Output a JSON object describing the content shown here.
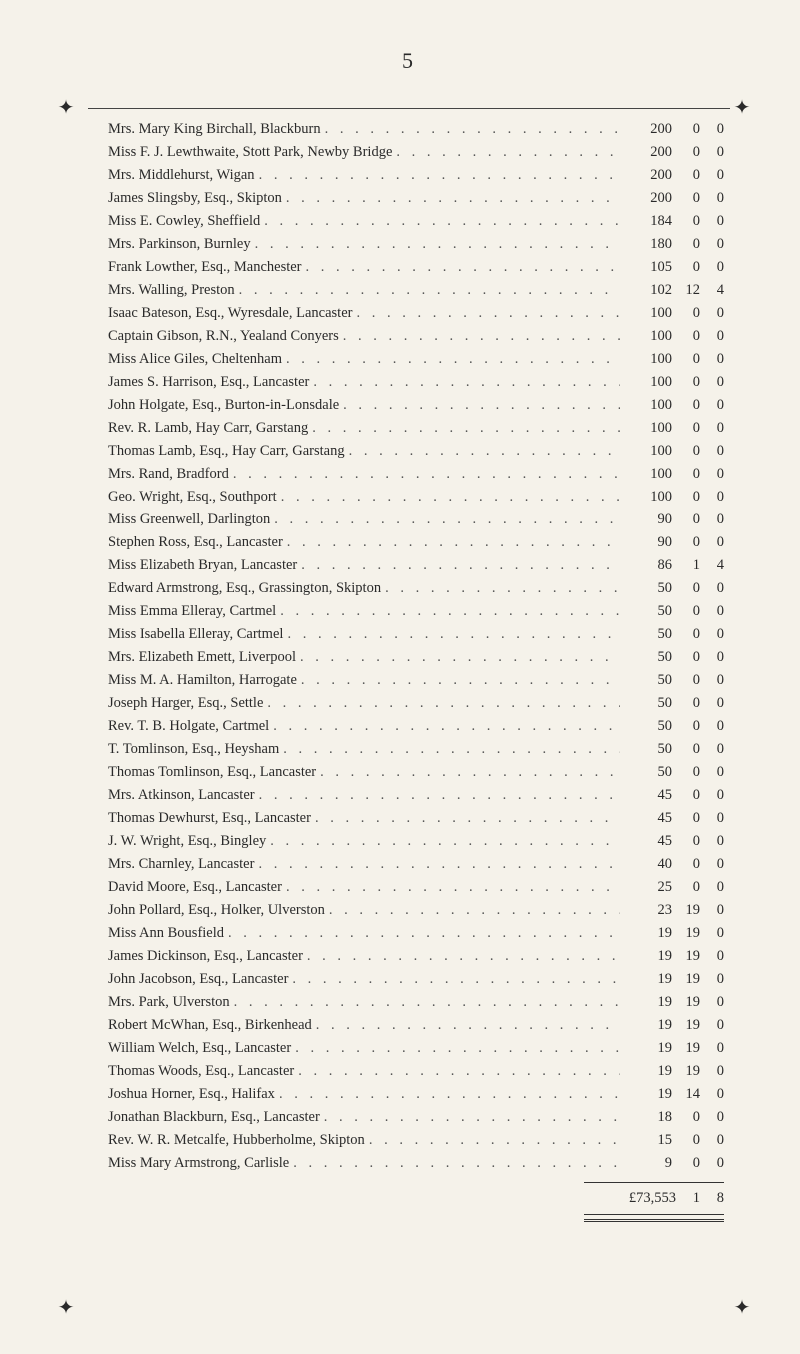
{
  "page_number": "5",
  "ornaments": {
    "top_left": "✦",
    "top_right": "✦",
    "bottom_left": "✦",
    "bottom_right": "✦"
  },
  "entries": [
    {
      "name": "Mrs. Mary King Birchall, Blackburn",
      "p": "200",
      "s": "0",
      "d": "0"
    },
    {
      "name": "Miss F. J. Lewthwaite, Stott Park, Newby Bridge",
      "p": "200",
      "s": "0",
      "d": "0"
    },
    {
      "name": "Mrs. Middlehurst, Wigan",
      "p": "200",
      "s": "0",
      "d": "0"
    },
    {
      "name": "James Slingsby, Esq., Skipton",
      "p": "200",
      "s": "0",
      "d": "0"
    },
    {
      "name": "Miss E. Cowley, Sheffield",
      "p": "184",
      "s": "0",
      "d": "0"
    },
    {
      "name": "Mrs. Parkinson, Burnley",
      "p": "180",
      "s": "0",
      "d": "0"
    },
    {
      "name": "Frank Lowther, Esq., Manchester",
      "p": "105",
      "s": "0",
      "d": "0"
    },
    {
      "name": "Mrs. Walling, Preston",
      "p": "102",
      "s": "12",
      "d": "4"
    },
    {
      "name": "Isaac Bateson, Esq., Wyresdale, Lancaster",
      "p": "100",
      "s": "0",
      "d": "0"
    },
    {
      "name": "Captain Gibson, R.N., Yealand Conyers",
      "p": "100",
      "s": "0",
      "d": "0"
    },
    {
      "name": "Miss Alice Giles, Cheltenham",
      "p": "100",
      "s": "0",
      "d": "0"
    },
    {
      "name": "James S. Harrison, Esq., Lancaster",
      "p": "100",
      "s": "0",
      "d": "0"
    },
    {
      "name": "John Holgate, Esq., Burton-in-Lonsdale",
      "p": "100",
      "s": "0",
      "d": "0"
    },
    {
      "name": "Rev. R. Lamb, Hay Carr, Garstang",
      "p": "100",
      "s": "0",
      "d": "0"
    },
    {
      "name": "Thomas Lamb, Esq., Hay Carr, Garstang",
      "p": "100",
      "s": "0",
      "d": "0"
    },
    {
      "name": "Mrs. Rand, Bradford",
      "p": "100",
      "s": "0",
      "d": "0"
    },
    {
      "name": "Geo. Wright, Esq., Southport",
      "p": "100",
      "s": "0",
      "d": "0"
    },
    {
      "name": "Miss Greenwell, Darlington",
      "p": "90",
      "s": "0",
      "d": "0"
    },
    {
      "name": "Stephen Ross, Esq., Lancaster",
      "p": "90",
      "s": "0",
      "d": "0"
    },
    {
      "name": "Miss Elizabeth Bryan, Lancaster",
      "p": "86",
      "s": "1",
      "d": "4"
    },
    {
      "name": "Edward Armstrong, Esq., Grassington, Skipton",
      "p": "50",
      "s": "0",
      "d": "0"
    },
    {
      "name": "Miss Emma Elleray, Cartmel",
      "p": "50",
      "s": "0",
      "d": "0"
    },
    {
      "name": "Miss Isabella Elleray, Cartmel",
      "p": "50",
      "s": "0",
      "d": "0"
    },
    {
      "name": "Mrs. Elizabeth Emett, Liverpool",
      "p": "50",
      "s": "0",
      "d": "0"
    },
    {
      "name": "Miss M. A. Hamilton, Harrogate",
      "p": "50",
      "s": "0",
      "d": "0"
    },
    {
      "name": "Joseph Harger, Esq., Settle",
      "p": "50",
      "s": "0",
      "d": "0"
    },
    {
      "name": "Rev. T. B. Holgate, Cartmel",
      "p": "50",
      "s": "0",
      "d": "0"
    },
    {
      "name": "T. Tomlinson, Esq., Heysham",
      "p": "50",
      "s": "0",
      "d": "0"
    },
    {
      "name": "Thomas Tomlinson, Esq., Lancaster",
      "p": "50",
      "s": "0",
      "d": "0"
    },
    {
      "name": "Mrs. Atkinson, Lancaster",
      "p": "45",
      "s": "0",
      "d": "0"
    },
    {
      "name": "Thomas Dewhurst, Esq., Lancaster",
      "p": "45",
      "s": "0",
      "d": "0"
    },
    {
      "name": "J. W. Wright, Esq., Bingley",
      "p": "45",
      "s": "0",
      "d": "0"
    },
    {
      "name": "Mrs. Charnley, Lancaster",
      "p": "40",
      "s": "0",
      "d": "0"
    },
    {
      "name": "David Moore, Esq., Lancaster",
      "p": "25",
      "s": "0",
      "d": "0"
    },
    {
      "name": "John Pollard, Esq., Holker, Ulverston",
      "p": "23",
      "s": "19",
      "d": "0"
    },
    {
      "name": "Miss Ann Bousfield",
      "p": "19",
      "s": "19",
      "d": "0"
    },
    {
      "name": "James Dickinson, Esq., Lancaster",
      "p": "19",
      "s": "19",
      "d": "0"
    },
    {
      "name": "John Jacobson, Esq., Lancaster",
      "p": "19",
      "s": "19",
      "d": "0"
    },
    {
      "name": "Mrs. Park, Ulverston",
      "p": "19",
      "s": "19",
      "d": "0"
    },
    {
      "name": "Robert McWhan, Esq., Birkenhead",
      "p": "19",
      "s": "19",
      "d": "0"
    },
    {
      "name": "William Welch, Esq., Lancaster",
      "p": "19",
      "s": "19",
      "d": "0"
    },
    {
      "name": "Thomas Woods, Esq., Lancaster",
      "p": "19",
      "s": "19",
      "d": "0"
    },
    {
      "name": "Joshua Horner, Esq., Halifax",
      "p": "19",
      "s": "14",
      "d": "0"
    },
    {
      "name": "Jonathan Blackburn, Esq., Lancaster",
      "p": "18",
      "s": "0",
      "d": "0"
    },
    {
      "name": "Rev. W. R. Metcalfe, Hubberholme, Skipton",
      "p": "15",
      "s": "0",
      "d": "0"
    },
    {
      "name": "Miss Mary Armstrong, Carlisle",
      "p": "9",
      "s": "0",
      "d": "0"
    }
  ],
  "total": {
    "label": "£73,553",
    "s": "1",
    "d": "8"
  }
}
